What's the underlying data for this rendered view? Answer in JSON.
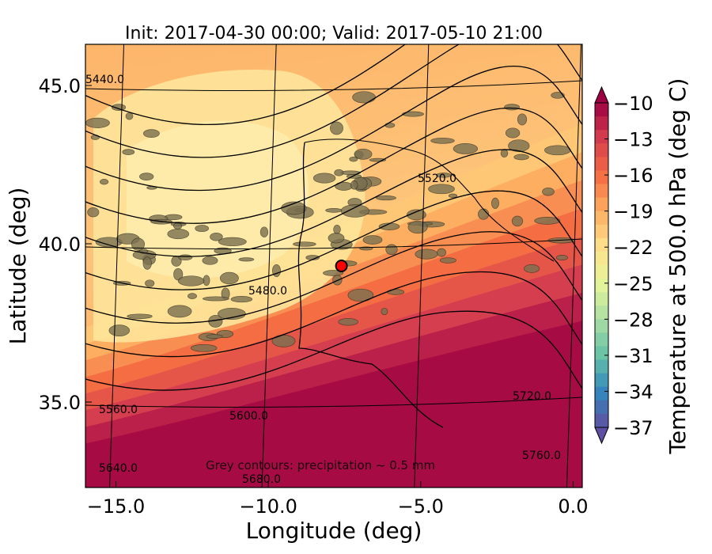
{
  "chart_data": {
    "type": "heatmap",
    "title": "Init: 2017-04-30 00:00; Valid: 2017-05-10 21:00",
    "xlabel": "Longitude (deg)",
    "ylabel": "Latitude (deg)",
    "xlim": [
      -16.0,
      0.3
    ],
    "ylim": [
      32.3,
      46.3
    ],
    "x_ticks": [
      -15.0,
      -10.0,
      -5.0,
      0.0
    ],
    "x_tick_labels": [
      "−15.0",
      "−10.0",
      "−5.0",
      "0.0"
    ],
    "y_ticks": [
      35.0,
      40.0,
      45.0
    ],
    "y_tick_labels": [
      "35.0",
      "40.0",
      "45.0"
    ],
    "fill_variable": {
      "label": "Temperature at 500.0 hPa (deg C)",
      "range": [
        -37,
        -10
      ],
      "colorbar_ticks": [
        -10,
        -13,
        -16,
        -19,
        -22,
        -25,
        -28,
        -31,
        -34,
        -37
      ],
      "colorbar_tick_labels": [
        "−10",
        "−13",
        "−16",
        "−19",
        "−22",
        "−25",
        "−28",
        "−31",
        "−34",
        "−37"
      ],
      "colormap": [
        "#5e4fa2",
        "#3288bd",
        "#66c2a5",
        "#abdda4",
        "#e6f598",
        "#fee08b",
        "#fdae61",
        "#f46d43",
        "#d53e4f",
        "#9e0142"
      ],
      "extend": "both"
    },
    "height_contours": [
      {
        "value": 5440.0,
        "label": "5440.0"
      },
      {
        "value": 5480.0,
        "label": "5480.0"
      },
      {
        "value": 5520.0,
        "label": "5520.0"
      },
      {
        "value": 5560.0,
        "label": "5560.0"
      },
      {
        "value": 5600.0,
        "label": "5600.0"
      },
      {
        "value": 5640.0,
        "label": "5640.0"
      },
      {
        "value": 5680.0,
        "label": "5680.0"
      },
      {
        "value": 5720.0,
        "label": "5720.0"
      },
      {
        "value": 5760.0,
        "label": "5760.0"
      }
    ],
    "annotation": "Grey contours: precipitation ~ 0.5 mm",
    "marker": {
      "lon": -7.6,
      "lat": 39.3,
      "color": "#ff0000"
    },
    "grid": true
  }
}
